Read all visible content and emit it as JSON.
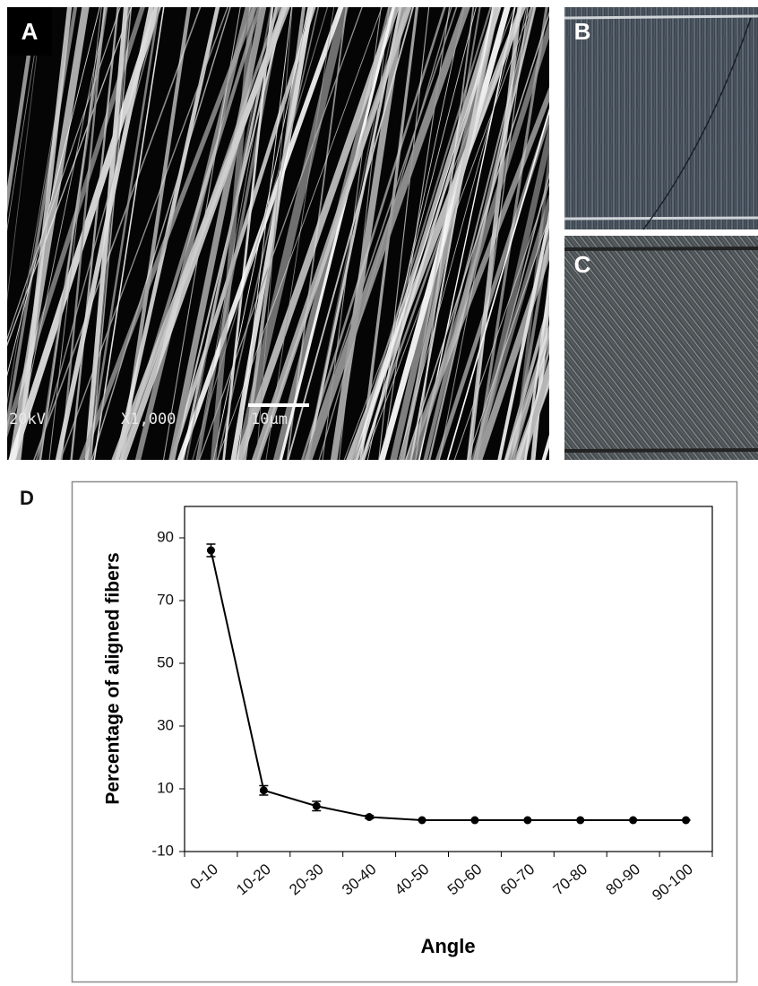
{
  "panels": {
    "a": {
      "label": "A",
      "annotations": [
        "20kV",
        "X1,000",
        "10μm"
      ]
    },
    "b": {
      "label": "B"
    },
    "c": {
      "label": "C"
    },
    "d": {
      "label": "D"
    }
  },
  "chart_data": {
    "type": "line",
    "x_label": "Angle",
    "y_label": "Percentage of aligned fibers",
    "categories": [
      "0-10",
      "10-20",
      "20-30",
      "30-40",
      "40-50",
      "50-60",
      "60-70",
      "70-80",
      "80-90",
      "90-100"
    ],
    "values": [
      86,
      9.5,
      4.5,
      1,
      0,
      0,
      0,
      0,
      0,
      0
    ],
    "errors": [
      2,
      1.5,
      1.5,
      0.5,
      0,
      0,
      0,
      0,
      0,
      0
    ],
    "color": "#000000",
    "ylim": [
      -10,
      100
    ],
    "yticks": [
      -10,
      10,
      30,
      50,
      70,
      90
    ]
  }
}
